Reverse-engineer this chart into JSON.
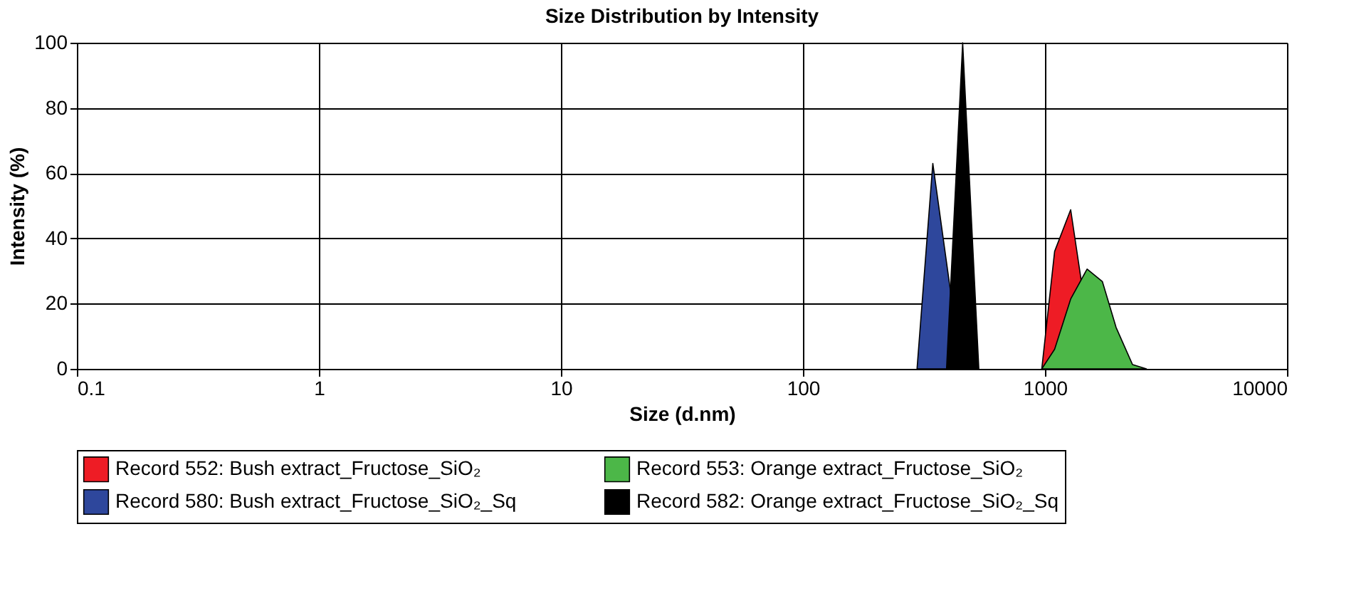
{
  "chart_data": {
    "type": "area",
    "title": "Size Distribution by Intensity",
    "xlabel": "Size (d.nm)",
    "ylabel": "Intensity (%)",
    "log": "x",
    "xlim": [
      0.1,
      10000
    ],
    "xticks": [
      0.1,
      1,
      10,
      100,
      1000,
      10000
    ],
    "ylim": [
      0,
      100
    ],
    "yticks": [
      0,
      20,
      40,
      60,
      80,
      100
    ],
    "grid": true,
    "legend": "bottom",
    "series": [
      {
        "name": "Record 552: Bush extract_Fructose_SiO₂",
        "color": "#ee1c25",
        "x": [
          970,
          1096,
          1277,
          1406,
          1545
        ],
        "values": [
          0,
          36,
          48.8,
          28,
          0
        ]
      },
      {
        "name": "Record 553: Orange extract_Fructose_SiO₂",
        "color": "#4cb748",
        "x": [
          970,
          1096,
          1277,
          1493,
          1726,
          1967,
          2300,
          2624
        ],
        "values": [
          0,
          6,
          21.4,
          30.6,
          26.8,
          12.7,
          1.3,
          0
        ]
      },
      {
        "name": "Record 580: Bush extract_Fructose_SiO₂_Sq",
        "color": "#2e479c",
        "x": [
          296,
          344,
          451
        ],
        "values": [
          0,
          63,
          0
        ]
      },
      {
        "name": "Record 582: Orange extract_Fructose_SiO₂_Sq",
        "color": "#000000",
        "x": [
          392,
          457,
          533
        ],
        "values": [
          0,
          100,
          0
        ]
      }
    ]
  }
}
